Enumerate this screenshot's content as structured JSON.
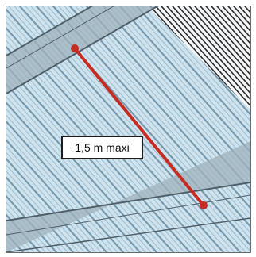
{
  "diagram": {
    "dimension_label": "1,5 m maxi",
    "colors": {
      "panel_light": "#cfe3ee",
      "panel_stripe": "#8fb3c7",
      "panel_dark_stripe": "#6a8ea3",
      "purlin_fill": "#9fb1bc",
      "purlin_edge": "#4f5f69",
      "white_area_lines": "#2b2b2b",
      "dimension_line": "#c62c22",
      "frame": "#3a3a3a"
    },
    "icons": {
      "endpoint_marker": "dot"
    }
  }
}
